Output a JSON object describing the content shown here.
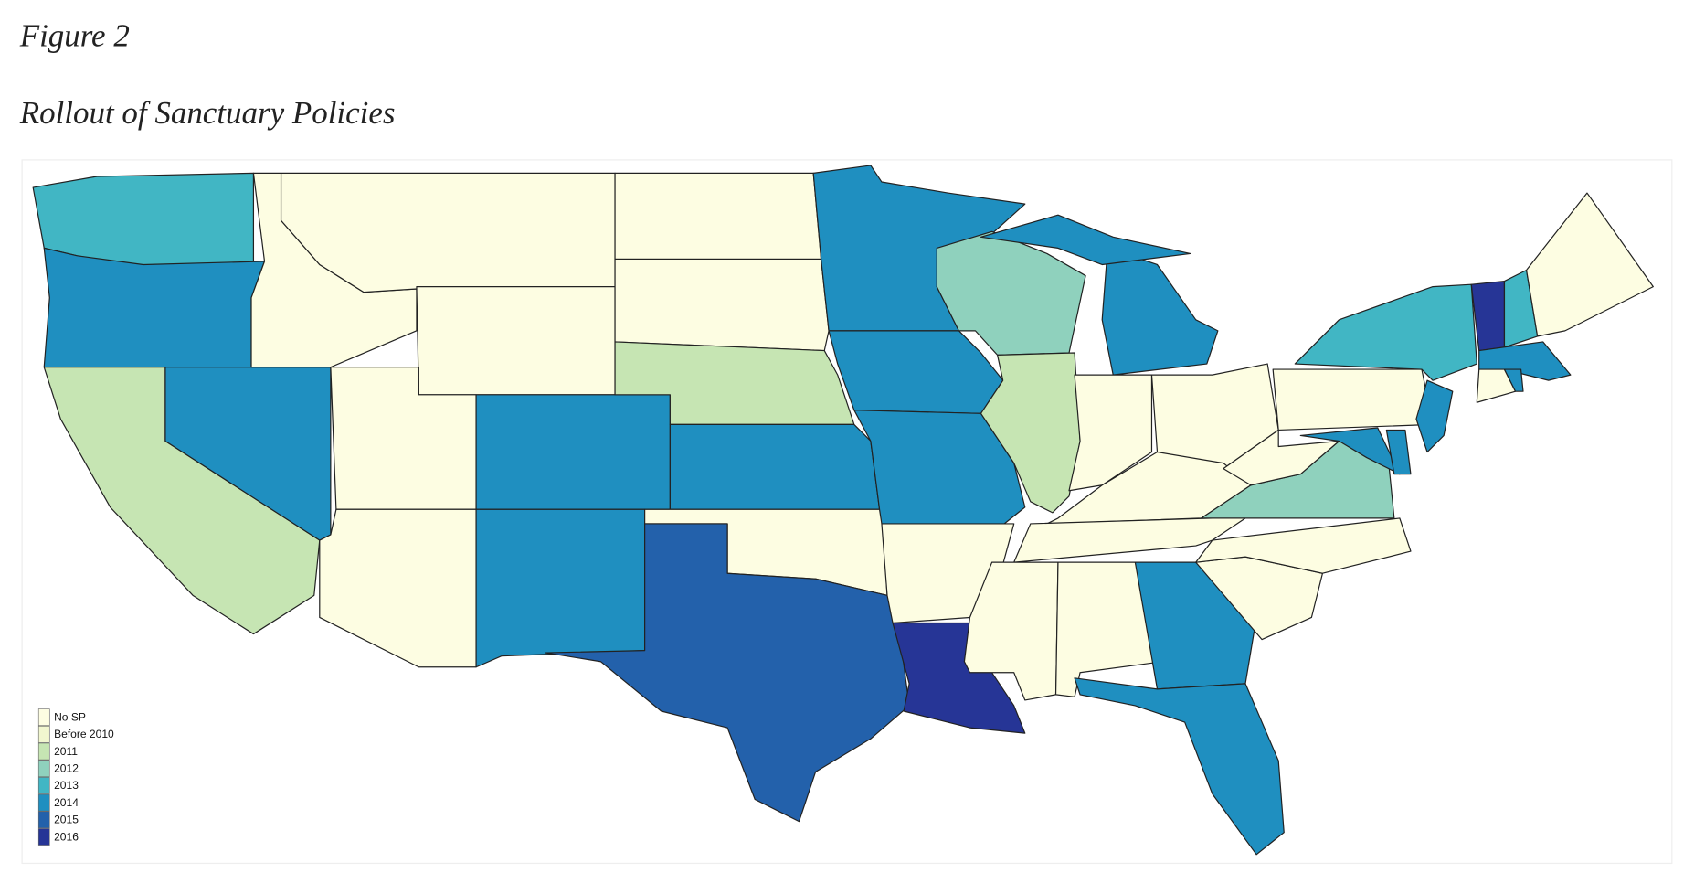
{
  "title": "Figure 2",
  "subtitle": "Rollout of Sanctuary Policies",
  "legend": [
    {
      "label": "No SP",
      "color": "#fdfde2"
    },
    {
      "label": "Before 2010",
      "color": "#f1f6cf"
    },
    {
      "label": "2011",
      "color": "#c6e5b3"
    },
    {
      "label": "2012",
      "color": "#8fd1bd"
    },
    {
      "label": "2013",
      "color": "#41b6c4"
    },
    {
      "label": "2014",
      "color": "#1f8fc0"
    },
    {
      "label": "2015",
      "color": "#2361ab"
    },
    {
      "label": "2016",
      "color": "#263596"
    }
  ]
}
